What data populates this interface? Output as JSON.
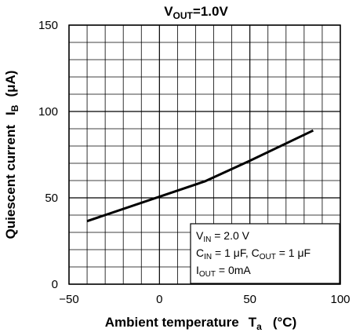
{
  "chart_data": {
    "type": "line",
    "title": {
      "main": "V",
      "sub": "OUT",
      "rest": "=1.0V"
    },
    "xlabel": {
      "main": "Ambient temperature",
      "var": "T",
      "var_sub": "a",
      "unit": "(°C)"
    },
    "ylabel": {
      "main": "Quiescent current",
      "var": "I",
      "var_sub": "B",
      "unit": "(μA)"
    },
    "xlim": [
      -50,
      100
    ],
    "ylim": [
      0,
      150
    ],
    "x_ticks": [
      -50,
      0,
      50,
      100
    ],
    "x_tick_labels": [
      "−50",
      "0",
      "50",
      "100"
    ],
    "y_ticks": [
      0,
      50,
      100,
      150
    ],
    "y_tick_labels": [
      "0",
      "50",
      "100",
      "150"
    ],
    "grid": true,
    "grid_minor_x_step": 10,
    "grid_minor_y_step": 10,
    "series": [
      {
        "color": "#000000",
        "x": [
          -40,
          25,
          50,
          85
        ],
        "y": [
          36.5,
          59.5,
          71.5,
          89
        ]
      }
    ],
    "annotation": {
      "placement": "bottom-right",
      "lines": [
        [
          {
            "t": "V"
          },
          {
            "t": "IN",
            "sub": true
          },
          {
            "t": " = 2.0 V"
          }
        ],
        [
          {
            "t": "C"
          },
          {
            "t": "IN",
            "sub": true
          },
          {
            "t": " = 1 μF, C"
          },
          {
            "t": "OUT",
            "sub": true
          },
          {
            "t": " = 1 μF"
          }
        ],
        [
          {
            "t": "I"
          },
          {
            "t": "OUT",
            "sub": true
          },
          {
            "t": " = 0mA"
          }
        ]
      ]
    }
  }
}
